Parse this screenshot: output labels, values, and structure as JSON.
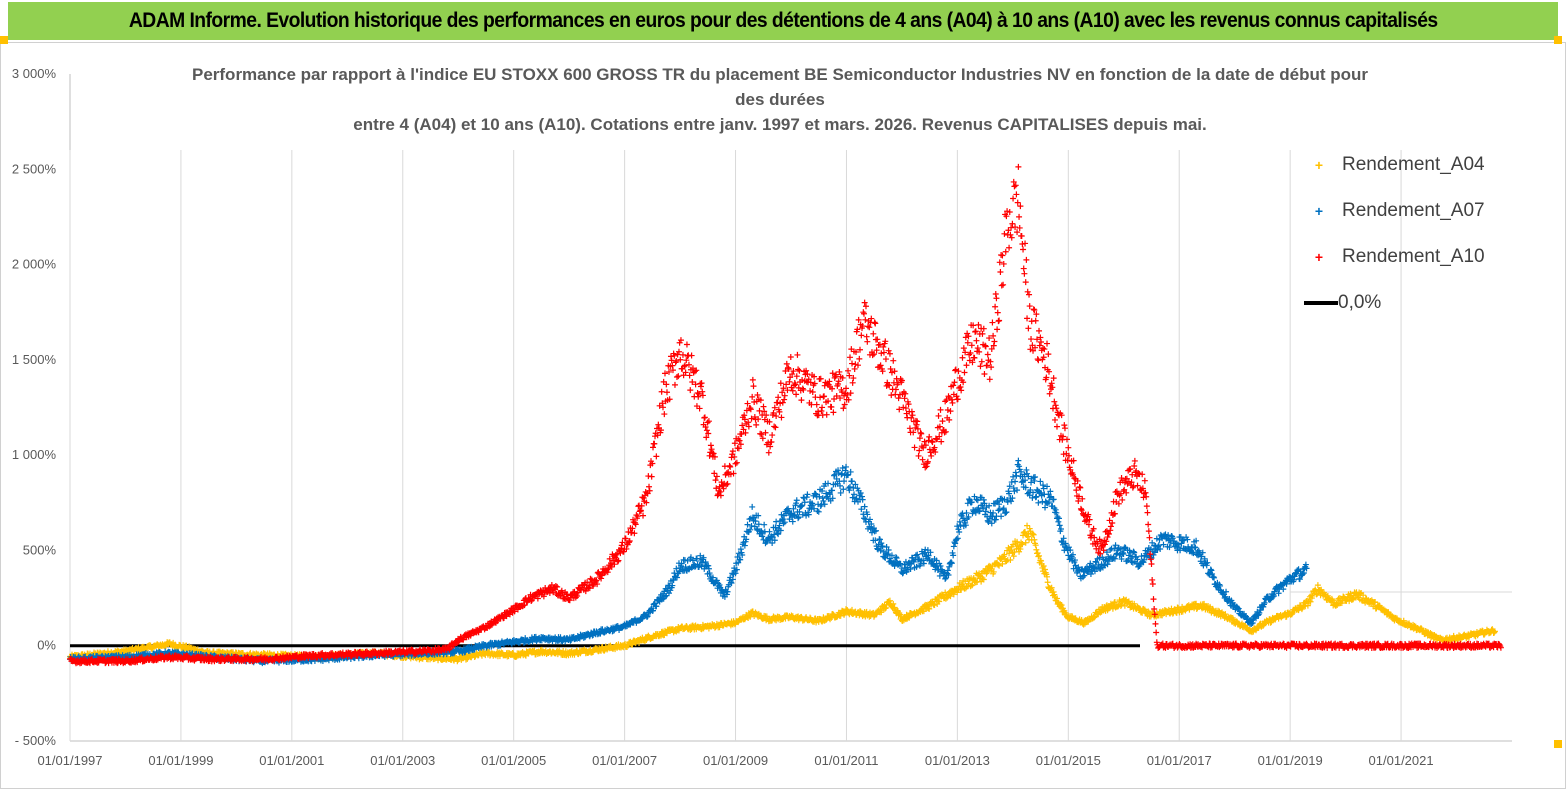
{
  "header": {
    "title": "ADAM Informe. Evolution historique des performances en euros pour des détentions de 4 ans (A04) à 10 ans (A10) avec les revenus connus capitalisés",
    "banner_color": "#92d050"
  },
  "chart_data": {
    "type": "scatter",
    "title_lines": [
      "Performance par rapport à l'indice EU STOXX 600 GROSS TR  du placement BE Semiconductor Industries NV en fonction de la date de début pour",
      "des durées",
      "entre 4 (A04) et 10 ans (A10). Cotations entre janv. 1997 et mars. 2026. Revenus CAPITALISES depuis mai."
    ],
    "y_ticks": [
      "3 000%",
      "2 500%",
      "2 000%",
      "1 500%",
      "1 000%",
      "500%",
      "0%",
      "- 500%"
    ],
    "y_tick_values": [
      3000,
      2500,
      2000,
      1500,
      1000,
      500,
      0,
      -500
    ],
    "x_ticks": [
      "01/01/1997",
      "01/01/1999",
      "01/01/2001",
      "01/01/2003",
      "01/01/2005",
      "01/01/2007",
      "01/01/2009",
      "01/01/2011",
      "01/01/2013",
      "01/01/2015",
      "01/01/2017",
      "01/01/2019",
      "01/01/2021"
    ],
    "x_tick_years": [
      1997,
      1999,
      2001,
      2003,
      2005,
      2007,
      2009,
      2011,
      2013,
      2015,
      2017,
      2019,
      2021
    ],
    "x_range": [
      1997,
      2023
    ],
    "ylim": [
      -500,
      3000
    ],
    "grid": "vertical",
    "legend_position": "right",
    "series": [
      {
        "name": "Rendement_A04",
        "color": "#ffc000",
        "points": [
          [
            1997.0,
            -60
          ],
          [
            1998.0,
            -30
          ],
          [
            1998.8,
            10
          ],
          [
            1999.5,
            -40
          ],
          [
            2000.5,
            -50
          ],
          [
            2001.5,
            -60
          ],
          [
            2002.5,
            -40
          ],
          [
            2003.3,
            -60
          ],
          [
            2004.0,
            -70
          ],
          [
            2004.5,
            -40
          ],
          [
            2005.0,
            -50
          ],
          [
            2005.5,
            -30
          ],
          [
            2006.0,
            -40
          ],
          [
            2006.5,
            -20
          ],
          [
            2007.0,
            0
          ],
          [
            2007.5,
            50
          ],
          [
            2008.0,
            90
          ],
          [
            2008.5,
            100
          ],
          [
            2009.0,
            120
          ],
          [
            2009.3,
            170
          ],
          [
            2009.6,
            140
          ],
          [
            2010.0,
            150
          ],
          [
            2010.5,
            130
          ],
          [
            2011.0,
            180
          ],
          [
            2011.5,
            160
          ],
          [
            2011.8,
            230
          ],
          [
            2012.0,
            140
          ],
          [
            2012.5,
            210
          ],
          [
            2013.0,
            300
          ],
          [
            2013.4,
            360
          ],
          [
            2013.8,
            440
          ],
          [
            2014.1,
            530
          ],
          [
            2014.3,
            600
          ],
          [
            2014.6,
            360
          ],
          [
            2014.8,
            230
          ],
          [
            2015.0,
            150
          ],
          [
            2015.3,
            120
          ],
          [
            2015.6,
            190
          ],
          [
            2016.0,
            230
          ],
          [
            2016.5,
            160
          ],
          [
            2017.0,
            190
          ],
          [
            2017.4,
            210
          ],
          [
            2017.8,
            160
          ],
          [
            2018.3,
            80
          ],
          [
            2018.7,
            140
          ],
          [
            2019.0,
            170
          ],
          [
            2019.3,
            220
          ],
          [
            2019.5,
            300
          ],
          [
            2019.8,
            220
          ],
          [
            2020.2,
            270
          ],
          [
            2020.5,
            220
          ],
          [
            2020.9,
            140
          ],
          [
            2021.3,
            90
          ],
          [
            2021.7,
            30
          ],
          [
            2022.2,
            50
          ],
          [
            2022.5,
            70
          ],
          [
            2022.7,
            80
          ]
        ]
      },
      {
        "name": "Rendement_A07",
        "color": "#0070c0",
        "points": [
          [
            1997.0,
            -70
          ],
          [
            1998.0,
            -60
          ],
          [
            1998.8,
            -40
          ],
          [
            1999.5,
            -60
          ],
          [
            2000.5,
            -80
          ],
          [
            2001.5,
            -70
          ],
          [
            2002.5,
            -50
          ],
          [
            2003.3,
            -40
          ],
          [
            2004.0,
            -30
          ],
          [
            2004.5,
            0
          ],
          [
            2005.0,
            20
          ],
          [
            2005.5,
            40
          ],
          [
            2006.0,
            30
          ],
          [
            2006.5,
            70
          ],
          [
            2007.0,
            100
          ],
          [
            2007.4,
            160
          ],
          [
            2007.8,
            300
          ],
          [
            2008.0,
            420
          ],
          [
            2008.4,
            440
          ],
          [
            2008.8,
            260
          ],
          [
            2009.0,
            400
          ],
          [
            2009.3,
            680
          ],
          [
            2009.6,
            560
          ],
          [
            2010.0,
            700
          ],
          [
            2010.5,
            760
          ],
          [
            2011.0,
            900
          ],
          [
            2011.3,
            720
          ],
          [
            2011.6,
            520
          ],
          [
            2012.0,
            400
          ],
          [
            2012.5,
            480
          ],
          [
            2012.8,
            340
          ],
          [
            2013.0,
            600
          ],
          [
            2013.3,
            760
          ],
          [
            2013.6,
            680
          ],
          [
            2013.9,
            760
          ],
          [
            2014.1,
            900
          ],
          [
            2014.4,
            820
          ],
          [
            2014.7,
            760
          ],
          [
            2014.9,
            560
          ],
          [
            2015.2,
            370
          ],
          [
            2015.5,
            420
          ],
          [
            2015.9,
            500
          ],
          [
            2016.3,
            440
          ],
          [
            2016.7,
            560
          ],
          [
            2017.0,
            540
          ],
          [
            2017.3,
            520
          ],
          [
            2017.6,
            360
          ],
          [
            2018.0,
            200
          ],
          [
            2018.3,
            120
          ],
          [
            2018.6,
            250
          ],
          [
            2019.0,
            350
          ],
          [
            2019.3,
            400
          ]
        ]
      },
      {
        "name": "Rendement_A10",
        "color": "#ff0000",
        "points": [
          [
            1997.0,
            -80
          ],
          [
            1998.0,
            -80
          ],
          [
            1998.8,
            -60
          ],
          [
            1999.5,
            -70
          ],
          [
            2000.5,
            -70
          ],
          [
            2001.5,
            -50
          ],
          [
            2002.5,
            -40
          ],
          [
            2003.3,
            -30
          ],
          [
            2003.8,
            -20
          ],
          [
            2004.0,
            30
          ],
          [
            2004.5,
            100
          ],
          [
            2005.0,
            190
          ],
          [
            2005.3,
            250
          ],
          [
            2005.7,
            300
          ],
          [
            2006.0,
            250
          ],
          [
            2006.5,
            350
          ],
          [
            2007.0,
            520
          ],
          [
            2007.4,
            780
          ],
          [
            2007.7,
            1300
          ],
          [
            2008.0,
            1550
          ],
          [
            2008.4,
            1300
          ],
          [
            2008.7,
            800
          ],
          [
            2009.0,
            1000
          ],
          [
            2009.3,
            1300
          ],
          [
            2009.6,
            1100
          ],
          [
            2010.0,
            1450
          ],
          [
            2010.5,
            1300
          ],
          [
            2011.0,
            1350
          ],
          [
            2011.3,
            1700
          ],
          [
            2011.6,
            1550
          ],
          [
            2012.0,
            1300
          ],
          [
            2012.4,
            1000
          ],
          [
            2012.8,
            1200
          ],
          [
            2013.0,
            1400
          ],
          [
            2013.3,
            1600
          ],
          [
            2013.6,
            1500
          ],
          [
            2013.9,
            2200
          ],
          [
            2014.1,
            2350
          ],
          [
            2014.3,
            1700
          ],
          [
            2014.6,
            1500
          ],
          [
            2014.9,
            1100
          ],
          [
            2015.2,
            800
          ],
          [
            2015.4,
            600
          ],
          [
            2015.6,
            500
          ],
          [
            2015.9,
            800
          ],
          [
            2016.2,
            900
          ],
          [
            2016.4,
            800
          ],
          [
            2016.6,
            0
          ],
          [
            2022.8,
            0
          ]
        ]
      }
    ],
    "reference_line": {
      "name": "0,0%",
      "value": 0,
      "color": "#000000"
    }
  }
}
